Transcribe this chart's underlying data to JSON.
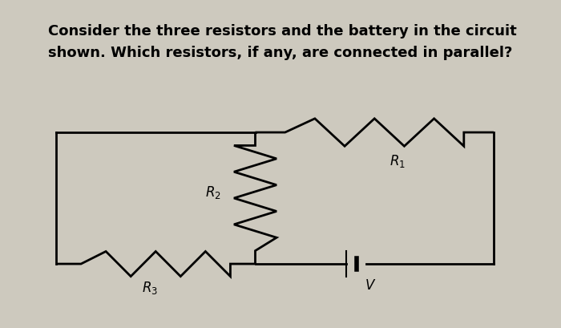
{
  "title_line1": "Consider the three resistors and the battery in the circuit",
  "title_line2": "shown. Which resistors, if any, are connected in parallel?",
  "bg_color": "#cdc9be",
  "text_color": "#000000",
  "line_color": "#000000",
  "title_fontsize": 13.0,
  "label_fontsize": 12,
  "circuit": {
    "ol": 0.1,
    "or_": 0.88,
    "ot": 0.595,
    "ob": 0.195,
    "mx": 0.455,
    "bx": 0.635
  }
}
